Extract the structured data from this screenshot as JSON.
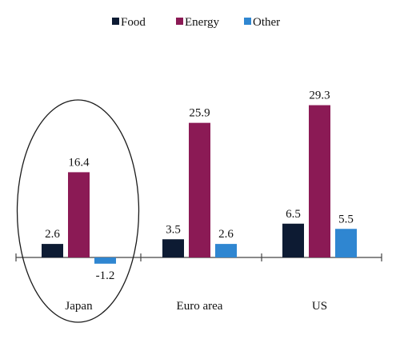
{
  "chart_data": {
    "type": "bar",
    "categories": [
      "Japan",
      "Euro area",
      "US"
    ],
    "series": [
      {
        "name": "Food",
        "color": "#0d1b33",
        "values": [
          2.6,
          3.5,
          6.5
        ]
      },
      {
        "name": "Energy",
        "color": "#8b1a55",
        "values": [
          16.4,
          25.9,
          29.3
        ]
      },
      {
        "name": "Other",
        "color": "#2f86d1",
        "values": [
          -1.2,
          2.6,
          5.5
        ]
      }
    ],
    "data_labels": [
      [
        "2.6",
        "16.4",
        "-1.2"
      ],
      [
        "3.5",
        "25.9",
        "2.6"
      ],
      [
        "6.5",
        "29.3",
        "5.5"
      ]
    ],
    "title": "",
    "xlabel": "",
    "ylabel": "",
    "ylim": [
      -2,
      34
    ],
    "legend_position": "top",
    "grid": false,
    "annotation": {
      "type": "ellipse",
      "category": "Japan"
    }
  }
}
